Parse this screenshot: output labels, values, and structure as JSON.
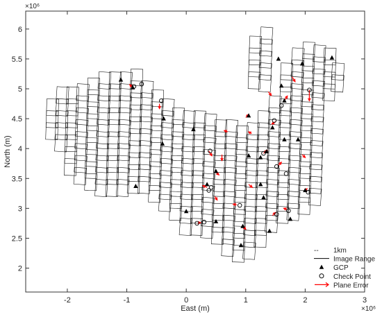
{
  "chart_data": {
    "type": "scatter",
    "title": "",
    "xlabel": "East (m)",
    "ylabel": "North (m)",
    "x_exponent": "×10⁶",
    "y_exponent": "×10⁶",
    "xlim": [
      -2.7,
      3.0
    ],
    "ylim": [
      1.6,
      6.3
    ],
    "x_ticks": [
      -2,
      -1,
      0,
      1,
      2,
      3
    ],
    "y_ticks": [
      2,
      2.5,
      3,
      3.5,
      4,
      4.5,
      5,
      5.5,
      6
    ],
    "x_tick_labels": [
      "-2",
      "-1",
      "0",
      "1",
      "2",
      "3"
    ],
    "y_tick_labels": [
      "2",
      "2.5",
      "3",
      "3.5",
      "4",
      "4.5",
      "5",
      "5.5",
      "6"
    ],
    "grid": false,
    "legend_position": "bottom-right",
    "legend": [
      {
        "key": "scale",
        "label": "1km",
        "symbol": "--"
      },
      {
        "key": "image_range",
        "label": "Image Range",
        "symbol": "line",
        "color": "#000000"
      },
      {
        "key": "gcp",
        "label": "GCP",
        "symbol": "filled-triangle",
        "color": "#000000"
      },
      {
        "key": "check",
        "label": "Check Point",
        "symbol": "open-circle",
        "color": "#000000"
      },
      {
        "key": "plane_error",
        "label": "Plane Error",
        "symbol": "arrow",
        "color": "#ff0000"
      }
    ],
    "image_range_strips": [
      {
        "x": -2.28,
        "y_start": 4.15,
        "y_end": 5.0,
        "tilt": 0.03
      },
      {
        "x": -2.12,
        "y_start": 3.95,
        "y_end": 5.05,
        "tilt": 0.03
      },
      {
        "x": -1.95,
        "y_start": 3.55,
        "y_end": 5.1,
        "tilt": 0.03
      },
      {
        "x": -1.78,
        "y_start": 3.4,
        "y_end": 5.15,
        "tilt": 0.03
      },
      {
        "x": -1.6,
        "y_start": 3.3,
        "y_end": 5.25,
        "tilt": 0.03
      },
      {
        "x": -1.42,
        "y_start": 3.2,
        "y_end": 5.35,
        "tilt": 0.03
      },
      {
        "x": -1.24,
        "y_start": 3.2,
        "y_end": 5.4,
        "tilt": 0.03
      },
      {
        "x": -1.06,
        "y_start": 3.2,
        "y_end": 5.45,
        "tilt": 0.03
      },
      {
        "x": -0.88,
        "y_start": 3.25,
        "y_end": 5.45,
        "tilt": 0.03
      },
      {
        "x": -0.7,
        "y_start": 3.25,
        "y_end": 5.3,
        "tilt": 0.03
      },
      {
        "x": -0.52,
        "y_start": 3.1,
        "y_end": 5.0,
        "tilt": 0.03
      },
      {
        "x": -0.34,
        "y_start": 2.95,
        "y_end": 4.85,
        "tilt": 0.03
      },
      {
        "x": -0.16,
        "y_start": 2.8,
        "y_end": 4.7,
        "tilt": 0.03
      },
      {
        "x": 0.02,
        "y_start": 2.55,
        "y_end": 4.7,
        "tilt": 0.03
      },
      {
        "x": 0.2,
        "y_start": 2.55,
        "y_end": 4.75,
        "tilt": 0.03
      },
      {
        "x": 0.38,
        "y_start": 2.5,
        "y_end": 4.6,
        "tilt": 0.03
      },
      {
        "x": 0.56,
        "y_start": 2.4,
        "y_end": 4.5,
        "tilt": 0.03
      },
      {
        "x": 0.74,
        "y_start": 2.2,
        "y_end": 4.5,
        "tilt": 0.03
      },
      {
        "x": 0.92,
        "y_start": 2.1,
        "y_end": 4.55,
        "tilt": 0.03
      },
      {
        "x": 1.1,
        "y_start": 2.15,
        "y_end": 4.6,
        "tilt": 0.03
      },
      {
        "x": 1.28,
        "y_start": 2.35,
        "y_end": 4.75,
        "tilt": 0.03
      },
      {
        "x": 1.46,
        "y_start": 2.6,
        "y_end": 5.0,
        "tilt": 0.03
      },
      {
        "x": 1.64,
        "y_start": 2.75,
        "y_end": 5.5,
        "tilt": 0.03
      },
      {
        "x": 1.82,
        "y_start": 2.8,
        "y_end": 5.85,
        "tilt": 0.03
      },
      {
        "x": 2.0,
        "y_start": 2.9,
        "y_end": 5.95,
        "tilt": 0.03
      },
      {
        "x": 2.18,
        "y_start": 3.05,
        "y_end": 5.8,
        "tilt": 0.03
      },
      {
        "x": 2.36,
        "y_start": 4.8,
        "y_end": 5.7,
        "tilt": 0.03
      },
      {
        "x": 2.5,
        "y_start": 4.95,
        "y_end": 5.6,
        "tilt": 0.03
      },
      {
        "x": 1.1,
        "y_start": 5.0,
        "y_end": 6.0,
        "tilt": 0.03
      },
      {
        "x": 1.28,
        "y_start": 4.95,
        "y_end": 6.05,
        "tilt": 0.03
      }
    ],
    "gcp_points": [
      {
        "x": -1.1,
        "y": 5.15
      },
      {
        "x": -0.9,
        "y": 5.02
      },
      {
        "x": -0.38,
        "y": 4.5
      },
      {
        "x": -0.4,
        "y": 4.08
      },
      {
        "x": -0.85,
        "y": 3.37
      },
      {
        "x": 0.12,
        "y": 4.32
      },
      {
        "x": 0.0,
        "y": 2.95
      },
      {
        "x": 0.35,
        "y": 3.4
      },
      {
        "x": 0.5,
        "y": 3.62
      },
      {
        "x": 0.5,
        "y": 2.78
      },
      {
        "x": 0.95,
        "y": 2.7
      },
      {
        "x": 0.92,
        "y": 2.38
      },
      {
        "x": 1.25,
        "y": 3.85
      },
      {
        "x": 1.35,
        "y": 3.95
      },
      {
        "x": 1.3,
        "y": 3.18
      },
      {
        "x": 1.25,
        "y": 3.4
      },
      {
        "x": 1.4,
        "y": 2.62
      },
      {
        "x": 1.05,
        "y": 4.55
      },
      {
        "x": 1.45,
        "y": 4.35
      },
      {
        "x": 1.65,
        "y": 4.15
      },
      {
        "x": 1.65,
        "y": 4.8
      },
      {
        "x": 1.6,
        "y": 5.05
      },
      {
        "x": 1.55,
        "y": 5.5
      },
      {
        "x": 1.95,
        "y": 5.42
      },
      {
        "x": 2.45,
        "y": 5.52
      },
      {
        "x": 1.88,
        "y": 4.15
      },
      {
        "x": 2.0,
        "y": 3.3
      },
      {
        "x": 1.75,
        "y": 2.82
      },
      {
        "x": 1.05,
        "y": 3.88
      }
    ],
    "check_points": [
      {
        "x": -0.88,
        "y": 5.04
      },
      {
        "x": -0.75,
        "y": 5.08
      },
      {
        "x": -0.42,
        "y": 4.8
      },
      {
        "x": 0.4,
        "y": 3.96
      },
      {
        "x": 0.38,
        "y": 3.3
      },
      {
        "x": 0.42,
        "y": 3.35
      },
      {
        "x": 0.18,
        "y": 2.75
      },
      {
        "x": 0.3,
        "y": 2.77
      },
      {
        "x": 0.9,
        "y": 3.05
      },
      {
        "x": 1.3,
        "y": 3.92
      },
      {
        "x": 1.48,
        "y": 4.47
      },
      {
        "x": 1.52,
        "y": 3.7
      },
      {
        "x": 1.68,
        "y": 3.58
      },
      {
        "x": 1.52,
        "y": 2.9
      },
      {
        "x": 1.72,
        "y": 2.96
      },
      {
        "x": 1.6,
        "y": 4.72
      },
      {
        "x": 2.07,
        "y": 4.98
      },
      {
        "x": 2.05,
        "y": 3.27
      }
    ],
    "plane_error_arrows": [
      {
        "x": -0.9,
        "y": 5.02,
        "dx": -0.05,
        "dy": 0.05
      },
      {
        "x": 0.38,
        "y": 3.96,
        "dx": 0.05,
        "dy": -0.08
      },
      {
        "x": 0.7,
        "y": 4.28,
        "dx": -0.06,
        "dy": 0.02
      },
      {
        "x": 0.6,
        "y": 3.9,
        "dx": 0.0,
        "dy": -0.1
      },
      {
        "x": 0.5,
        "y": 3.6,
        "dx": 0.05,
        "dy": -0.04
      },
      {
        "x": 0.48,
        "y": 3.2,
        "dx": 0.04,
        "dy": -0.06
      },
      {
        "x": 0.35,
        "y": 3.35,
        "dx": -0.07,
        "dy": 0.03
      },
      {
        "x": 0.2,
        "y": 2.76,
        "dx": 0.04,
        "dy": 0.0
      },
      {
        "x": 0.85,
        "y": 3.06,
        "dx": -0.06,
        "dy": 0.01
      },
      {
        "x": 0.95,
        "y": 2.7,
        "dx": 0.05,
        "dy": -0.05
      },
      {
        "x": 1.05,
        "y": 3.4,
        "dx": 0.06,
        "dy": -0.05
      },
      {
        "x": 1.1,
        "y": 4.25,
        "dx": -0.05,
        "dy": 0.03
      },
      {
        "x": 1.3,
        "y": 3.92,
        "dx": 0.06,
        "dy": 0.05
      },
      {
        "x": 1.5,
        "y": 4.45,
        "dx": -0.06,
        "dy": -0.04
      },
      {
        "x": 1.38,
        "y": 4.95,
        "dx": 0.05,
        "dy": -0.06
      },
      {
        "x": 1.55,
        "y": 3.72,
        "dx": 0.05,
        "dy": 0.05
      },
      {
        "x": 1.45,
        "y": 2.88,
        "dx": 0.05,
        "dy": 0.05
      },
      {
        "x": 1.7,
        "y": 2.98,
        "dx": -0.06,
        "dy": 0.02
      },
      {
        "x": 1.98,
        "y": 3.28,
        "dx": 0.05,
        "dy": 0.05
      },
      {
        "x": 1.95,
        "y": 3.9,
        "dx": 0.05,
        "dy": -0.05
      },
      {
        "x": 1.65,
        "y": 4.8,
        "dx": 0.05,
        "dy": 0.08
      },
      {
        "x": 1.78,
        "y": 5.2,
        "dx": 0.05,
        "dy": -0.08
      },
      {
        "x": 2.07,
        "y": 4.98,
        "dx": 0.0,
        "dy": -0.18
      },
      {
        "x": 1.0,
        "y": 4.52,
        "dx": 0.05,
        "dy": 0.05
      },
      {
        "x": -0.45,
        "y": 4.75,
        "dx": 0.0,
        "dy": -0.08
      }
    ]
  }
}
